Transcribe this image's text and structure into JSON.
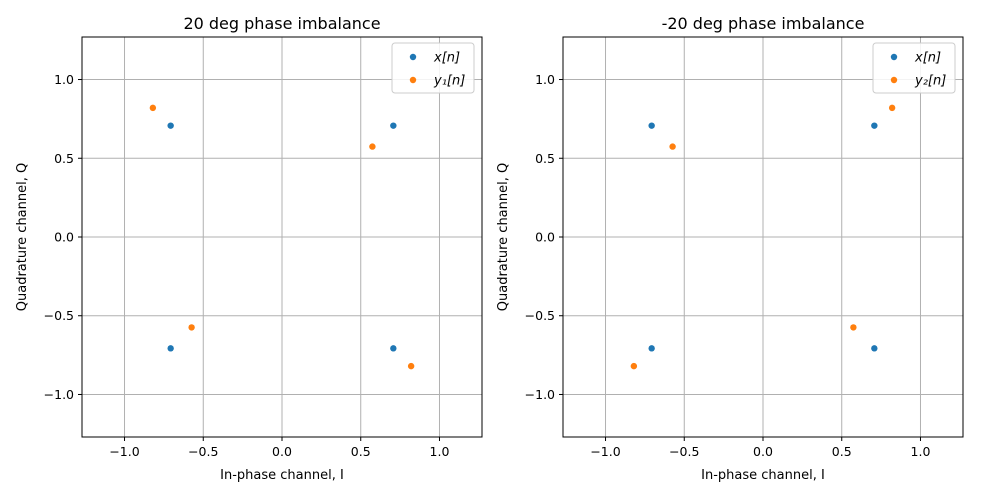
{
  "chart_data": [
    {
      "type": "scatter",
      "title": "20 deg phase imbalance",
      "xlabel": "In-phase channel, I",
      "ylabel": "Quadrature channel, Q",
      "xlim": [
        -1.27,
        1.27
      ],
      "ylim": [
        -1.27,
        1.27
      ],
      "xticks": [
        -1.0,
        -0.5,
        0.0,
        0.5,
        1.0
      ],
      "yticks": [
        -1.0,
        -0.5,
        0.0,
        0.5,
        1.0
      ],
      "xtick_labels": [
        "−1.0",
        "−0.5",
        "0.0",
        "0.5",
        "1.0"
      ],
      "ytick_labels": [
        "−1.0",
        "−0.5",
        "0.0",
        "0.5",
        "1.0"
      ],
      "grid": true,
      "legend": "top-right",
      "series": [
        {
          "name": "x[n]",
          "color": "#1f77b4",
          "x": [
            -0.707,
            0.707,
            -0.707,
            0.707
          ],
          "y": [
            0.707,
            0.707,
            -0.707,
            -0.707
          ]
        },
        {
          "name": "y₁[n]",
          "color": "#ff7f0e",
          "x": [
            -0.82,
            0.574,
            -0.574,
            0.82
          ],
          "y": [
            0.82,
            0.574,
            -0.574,
            -0.82
          ]
        }
      ]
    },
    {
      "type": "scatter",
      "title": "-20 deg phase imbalance",
      "xlabel": "In-phase channel, I",
      "ylabel": "Quadrature channel, Q",
      "xlim": [
        -1.27,
        1.27
      ],
      "ylim": [
        -1.27,
        1.27
      ],
      "xticks": [
        -1.0,
        -0.5,
        0.0,
        0.5,
        1.0
      ],
      "yticks": [
        -1.0,
        -0.5,
        0.0,
        0.5,
        1.0
      ],
      "xtick_labels": [
        "−1.0",
        "−0.5",
        "0.0",
        "0.5",
        "1.0"
      ],
      "ytick_labels": [
        "−1.0",
        "−0.5",
        "0.0",
        "0.5",
        "1.0"
      ],
      "grid": true,
      "legend": "top-right",
      "series": [
        {
          "name": "x[n]",
          "color": "#1f77b4",
          "x": [
            -0.707,
            0.707,
            -0.707,
            0.707
          ],
          "y": [
            0.707,
            0.707,
            -0.707,
            -0.707
          ]
        },
        {
          "name": "y₂[n]",
          "color": "#ff7f0e",
          "x": [
            -0.574,
            0.82,
            -0.82,
            0.574
          ],
          "y": [
            0.574,
            0.82,
            -0.82,
            -0.574
          ]
        }
      ]
    }
  ]
}
